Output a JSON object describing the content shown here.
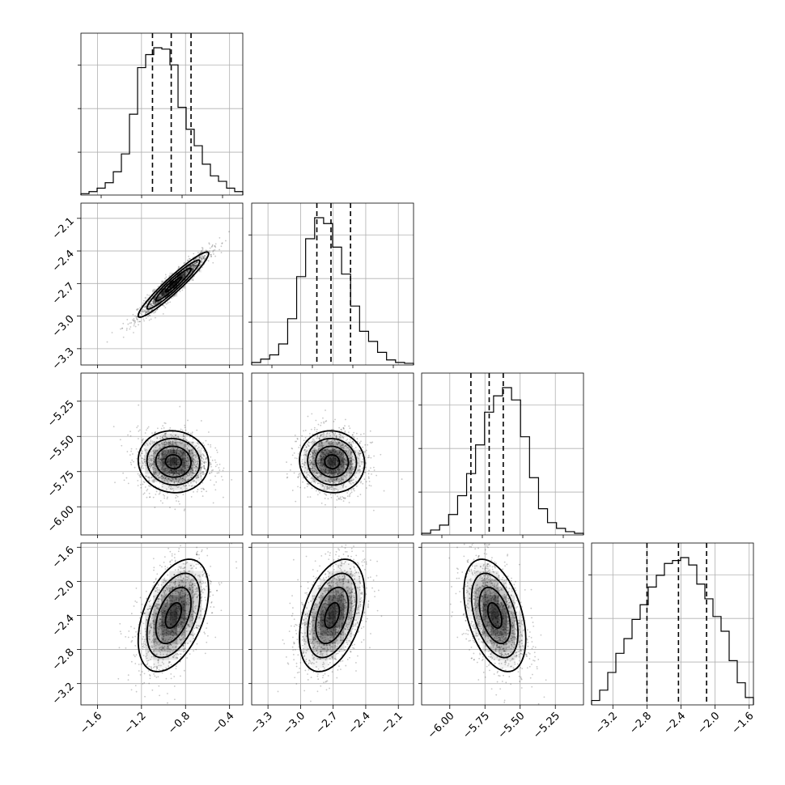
{
  "chart_data": {
    "type": "corner",
    "grid": true,
    "parameters": [
      {
        "range": [
          -1.75,
          -0.28
        ],
        "x_ticks": [
          -1.6,
          -1.2,
          -0.8,
          -0.4
        ],
        "x_tick_labels": [
          "−1.6",
          "−1.2",
          "−0.8",
          "−0.4"
        ],
        "quantiles": [
          -1.1,
          -0.93,
          -0.75
        ],
        "median": -0.91,
        "sigma": 0.16
      },
      {
        "range": [
          -3.45,
          -1.96
        ],
        "x_ticks": [
          -3.3,
          -3.0,
          -2.7,
          -2.4,
          -2.1
        ],
        "x_tick_labels": [
          "−3.3",
          "−3.0",
          "−2.7",
          "−2.4",
          "−2.1"
        ],
        "y_ticks": [
          -2.1,
          -2.4,
          -2.7,
          -3.0,
          -3.3
        ],
        "y_tick_labels": [
          "−2.1",
          "−2.4",
          "−2.7",
          "−3.0",
          "−3.3"
        ],
        "quantiles": [
          -2.85,
          -2.72,
          -2.54
        ],
        "median": -2.71,
        "sigma": 0.15
      },
      {
        "range": [
          -6.2,
          -5.05
        ],
        "x_ticks": [
          -6.0,
          -5.75,
          -5.5,
          -5.25
        ],
        "x_tick_labels": [
          "−6.00",
          "−5.75",
          "−5.50",
          "−5.25"
        ],
        "y_ticks": [
          -5.25,
          -5.5,
          -5.75,
          -6.0
        ],
        "y_tick_labels": [
          "−5.25",
          "−5.50",
          "−5.75",
          "−6.00"
        ],
        "quantiles": [
          -5.85,
          -5.72,
          -5.62
        ],
        "median": -5.68,
        "sigma": 0.11
      },
      {
        "range": [
          -3.45,
          -1.55
        ],
        "x_ticks": [
          -3.2,
          -2.8,
          -2.4,
          -2.0,
          -1.6
        ],
        "x_tick_labels": [
          "−3.2",
          "−2.8",
          "−2.4",
          "−2.0",
          "−1.6"
        ],
        "y_ticks": [
          -1.6,
          -2.0,
          -2.4,
          -2.8,
          -3.2
        ],
        "y_tick_labels": [
          "−1.6",
          "−2.0",
          "−2.4",
          "−2.8",
          "−3.2"
        ],
        "quantiles": [
          -2.8,
          -2.43,
          -2.1
        ],
        "median": -2.4,
        "sigma": 0.33
      }
    ],
    "histograms": [
      [
        2,
        5,
        10,
        18,
        34,
        60,
        118,
        186,
        205,
        215,
        213,
        190,
        128,
        96,
        72,
        45,
        28,
        20,
        10,
        5
      ],
      [
        3,
        7,
        12,
        25,
        55,
        105,
        150,
        175,
        168,
        140,
        108,
        70,
        40,
        28,
        15,
        6,
        3,
        2
      ],
      [
        2,
        6,
        12,
        25,
        48,
        75,
        110,
        150,
        170,
        180,
        165,
        120,
        70,
        32,
        15,
        8,
        4,
        2
      ],
      [
        3,
        10,
        22,
        35,
        45,
        58,
        68,
        80,
        88,
        96,
        98,
        100,
        95,
        82,
        72,
        60,
        50,
        30,
        15,
        5
      ]
    ],
    "correlations": {
      "1-0": 0.95,
      "2-0": -0.05,
      "2-1": -0.05,
      "3-0": 0.45,
      "3-1": 0.4,
      "3-2": -0.42
    }
  }
}
